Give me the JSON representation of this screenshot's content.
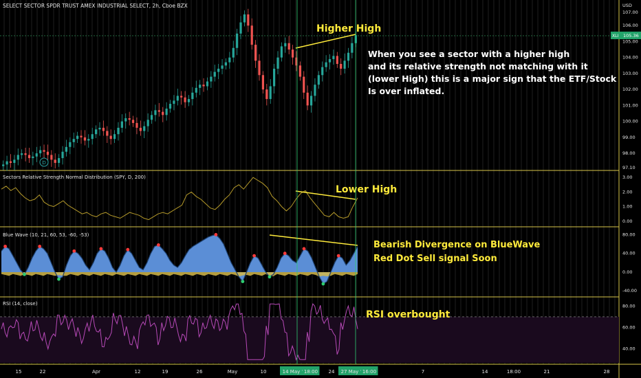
{
  "chart_data": [
    {
      "type": "candlestick",
      "title": "SELECT SECTOR SPDR TRUST AMEX INDUSTRIAL SELECT, 2h, Cboe BZX",
      "currency": "USD",
      "ticker": "XLI",
      "last_price": "105.36",
      "y_ticks": [
        "106.00",
        "105.00",
        "104.00",
        "103.00",
        "102.00",
        "101.00",
        "100.00",
        "99.00",
        "98.00",
        "97.10"
      ],
      "ylim": [
        97.1,
        107.0
      ],
      "y_top_label": "107.00",
      "x_ticks": [
        "15",
        "22",
        "Apr",
        "12",
        "19",
        "26",
        "May",
        "10",
        "14 May '21",
        "18:00",
        "24",
        "27 May '21",
        "16:00",
        "7",
        "14",
        "18:00",
        "21",
        "28"
      ],
      "closes": [
        97.3,
        97.5,
        97.4,
        97.6,
        97.9,
        98.0,
        97.9,
        97.7,
        97.8,
        98.0,
        98.2,
        98.1,
        97.9,
        97.6,
        97.4,
        97.7,
        98.1,
        98.4,
        98.7,
        98.9,
        99.1,
        99.0,
        98.8,
        98.9,
        99.2,
        99.5,
        99.6,
        99.4,
        99.1,
        98.9,
        99.2,
        99.6,
        100.0,
        100.2,
        100.1,
        99.9,
        99.6,
        99.4,
        99.7,
        100.1,
        100.4,
        100.7,
        100.6,
        100.4,
        100.8,
        101.1,
        101.3,
        101.6,
        101.5,
        101.2,
        101.4,
        101.8,
        102.1,
        102.3,
        102.2,
        102.5,
        102.8,
        103.1,
        103.3,
        103.5,
        103.7,
        104.0,
        104.6,
        105.5,
        106.2,
        106.7,
        106.0,
        104.8,
        103.8,
        102.9,
        102.0,
        101.4,
        102.2,
        103.3,
        104.0,
        104.7,
        104.9,
        104.5,
        104.0,
        103.5,
        102.8,
        101.8,
        101.0,
        101.6,
        102.3,
        102.9,
        103.4,
        103.7,
        103.9,
        104.1,
        103.6,
        103.3,
        103.8,
        104.3,
        104.9,
        105.4
      ],
      "annotation": {
        "label": "Higher High",
        "color": "#ffeb3b"
      }
    },
    {
      "type": "line",
      "title": "Sectors Relative Strength Normal Distribution (SPY, D, 200)",
      "y_ticks": [
        "3.00",
        "2.00",
        "1.00",
        "0.00"
      ],
      "ylim": [
        -0.2,
        3.2
      ],
      "values": [
        2.2,
        2.4,
        2.1,
        2.3,
        1.9,
        1.6,
        1.4,
        1.5,
        1.8,
        1.3,
        1.1,
        1.0,
        1.2,
        1.4,
        1.1,
        0.9,
        0.7,
        0.5,
        0.6,
        0.4,
        0.3,
        0.5,
        0.6,
        0.4,
        0.3,
        0.2,
        0.4,
        0.6,
        0.5,
        0.4,
        0.2,
        0.1,
        0.3,
        0.5,
        0.6,
        0.5,
        0.7,
        0.9,
        1.1,
        1.8,
        2.0,
        1.7,
        1.5,
        1.2,
        0.9,
        0.8,
        1.1,
        1.5,
        1.8,
        2.3,
        2.5,
        2.2,
        2.6,
        3.0,
        2.8,
        2.6,
        2.3,
        1.7,
        1.4,
        1.0,
        0.7,
        1.0,
        1.5,
        1.9,
        2.1,
        1.6,
        1.2,
        0.8,
        0.4,
        0.3,
        0.6,
        0.3,
        0.2,
        0.3,
        1.0,
        1.6
      ],
      "annotation": {
        "label": "Lower High",
        "color": "#ffeb3b"
      },
      "color": "#b59a2a"
    },
    {
      "type": "area",
      "title": "Blue Wave (10, 21, 60, 53, -60, -53)",
      "y_ticks": [
        "80.00",
        "40.00",
        "0.00",
        "-40.00"
      ],
      "ylim": [
        -50,
        88
      ],
      "values": [
        45,
        55,
        50,
        35,
        20,
        5,
        -5,
        10,
        30,
        45,
        55,
        50,
        40,
        20,
        0,
        -15,
        -10,
        15,
        35,
        45,
        40,
        30,
        15,
        5,
        20,
        40,
        50,
        45,
        30,
        10,
        0,
        15,
        35,
        48,
        40,
        25,
        10,
        5,
        20,
        40,
        55,
        58,
        50,
        40,
        25,
        15,
        10,
        20,
        35,
        48,
        55,
        60,
        65,
        70,
        75,
        78,
        80,
        72,
        60,
        40,
        20,
        5,
        -10,
        -20,
        0,
        20,
        35,
        30,
        15,
        0,
        -10,
        -5,
        10,
        30,
        40,
        35,
        25,
        20,
        35,
        50,
        45,
        30,
        10,
        -10,
        -25,
        -20,
        0,
        20,
        35,
        30,
        15,
        25,
        40,
        55
      ],
      "colors": {
        "area": "#5b8ed6",
        "edge": "#1c3f6e",
        "neg": "#d4b94a",
        "dot": "#ff3a3a"
      },
      "annotation": {
        "label": "Bearish Divergence on BlueWave\nRed Dot Sell signal Soon",
        "color": "#ffeb3b"
      }
    },
    {
      "type": "line",
      "title": "RSI (14, close)",
      "y_ticks": [
        "80.00",
        "60.00",
        "40.00"
      ],
      "ylim": [
        27,
        86
      ],
      "overbought": 70,
      "oversold": 30,
      "color": "#b84ab8",
      "annotation": {
        "label": "RSI overbought",
        "color": "#ffeb3b"
      }
    }
  ],
  "note_text": [
    "When you see a sector with a higher high",
    "and its relative strength not matching with it",
    "(lower High) this is a major sign that the ETF/Stock",
    "Is over inflated."
  ],
  "x_axis_highlights": [
    "14 May '21",
    "18:00",
    "27 May '21",
    "16:00"
  ]
}
